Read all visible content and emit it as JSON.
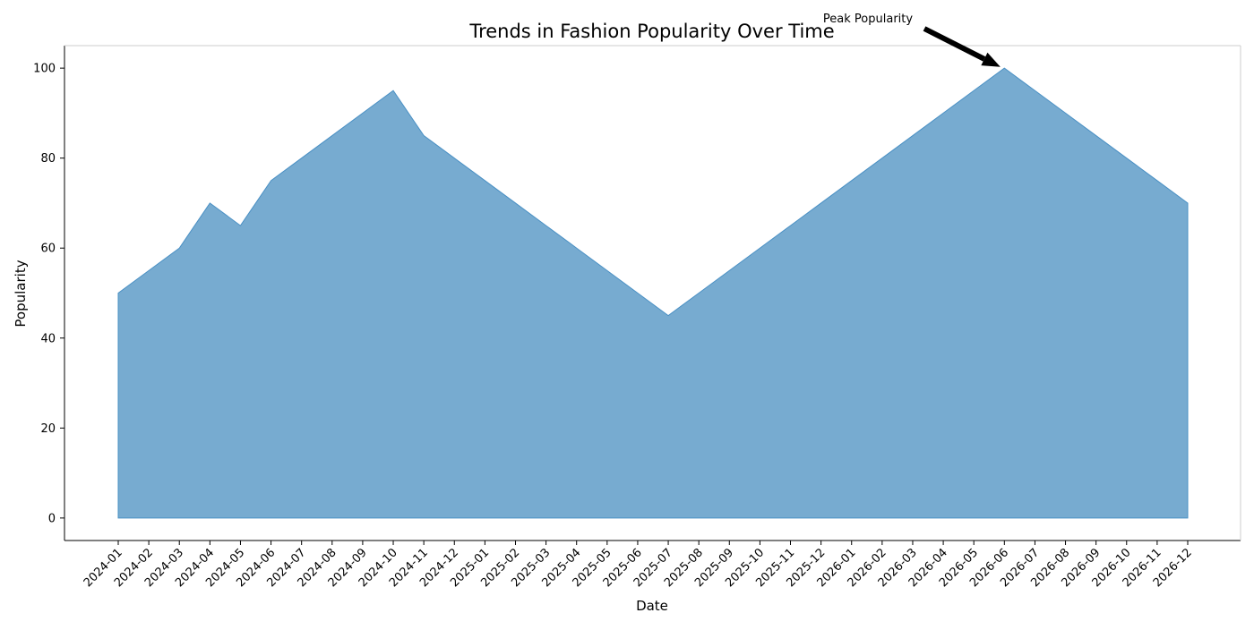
{
  "chart_data": {
    "type": "area",
    "title": "Trends in Fashion Popularity Over Time",
    "xlabel": "Date",
    "ylabel": "Popularity",
    "x": [
      "2024-01",
      "2024-02",
      "2024-03",
      "2024-04",
      "2024-05",
      "2024-06",
      "2024-07",
      "2024-08",
      "2024-09",
      "2024-10",
      "2024-11",
      "2024-12",
      "2025-01",
      "2025-02",
      "2025-03",
      "2025-04",
      "2025-05",
      "2025-06",
      "2025-07",
      "2025-08",
      "2025-09",
      "2025-10",
      "2025-11",
      "2025-12",
      "2026-01",
      "2026-02",
      "2026-03",
      "2026-04",
      "2026-05",
      "2026-06",
      "2026-07",
      "2026-08",
      "2026-09",
      "2026-10",
      "2026-11",
      "2026-12"
    ],
    "series": [
      {
        "values": [
          50,
          55,
          60,
          70,
          65,
          75,
          80,
          85,
          90,
          95,
          85,
          80,
          75,
          70,
          65,
          60,
          55,
          50,
          45,
          50,
          55,
          60,
          65,
          70,
          75,
          80,
          85,
          90,
          95,
          100,
          95,
          90,
          85,
          80,
          75,
          70
        ],
        "color": "#77abd0"
      }
    ],
    "ylim": [
      -5,
      105
    ],
    "yticks": [
      0,
      20,
      40,
      60,
      80,
      100
    ],
    "grid": false,
    "annotation": {
      "text": "Peak Popularity",
      "x": "2026-06",
      "y": 100
    }
  }
}
